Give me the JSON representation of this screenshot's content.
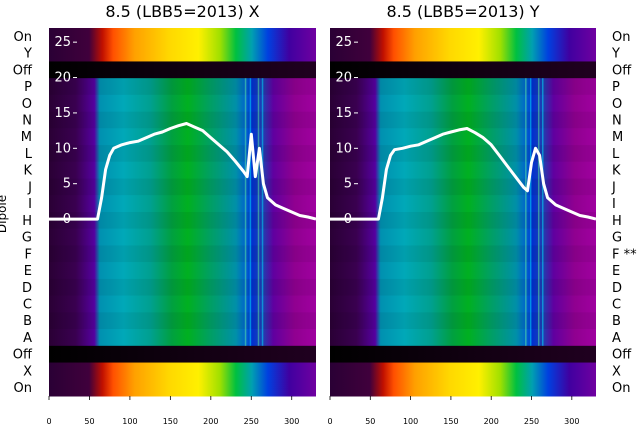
{
  "chart_data": [
    {
      "type": "heatmap",
      "title": "8.5 (LBB5=2013) X",
      "ylabel": "Dipole",
      "xlim": [
        0,
        330
      ],
      "xticks": [
        0,
        50,
        100,
        150,
        200,
        250,
        300
      ],
      "overlay_yticks": [
        0,
        5,
        10,
        15,
        20,
        25
      ],
      "overlay_ylim": [
        -25,
        27
      ],
      "row_labels": [
        "On",
        "Y",
        "Off",
        "P",
        "O",
        "N",
        "M",
        "L",
        "K",
        "J",
        "I",
        "H",
        "G",
        "F",
        "E",
        "D",
        "C",
        "B",
        "A",
        "Off",
        "X",
        "On"
      ],
      "overlay": {
        "type": "line",
        "x": [
          0,
          60,
          65,
          70,
          75,
          80,
          90,
          100,
          110,
          120,
          130,
          140,
          150,
          160,
          170,
          180,
          190,
          200,
          210,
          220,
          230,
          240,
          245,
          250,
          255,
          260,
          265,
          270,
          280,
          290,
          300,
          310,
          320,
          330
        ],
        "y": [
          0,
          0,
          3,
          7,
          9,
          10,
          10.5,
          10.8,
          11,
          11.5,
          12,
          12.3,
          12.8,
          13.2,
          13.5,
          13,
          12.5,
          11.5,
          10.5,
          9.5,
          8.2,
          6.8,
          6,
          12,
          6,
          10,
          5,
          3,
          2,
          1.5,
          1,
          0.5,
          0.3,
          0
        ]
      }
    },
    {
      "type": "heatmap",
      "title": "8.5 (LBB5=2013) Y",
      "xlim": [
        0,
        330
      ],
      "xticks": [
        0,
        50,
        100,
        150,
        200,
        250,
        300
      ],
      "overlay_yticks": [
        0,
        5,
        10,
        15,
        20,
        25
      ],
      "overlay_ylim": [
        -25,
        27
      ],
      "row_labels": [
        "On",
        "Y",
        "Off",
        "P",
        "O",
        "N",
        "M",
        "L",
        "K",
        "J",
        "I",
        "H",
        "G",
        "F **",
        "E",
        "D",
        "C",
        "B",
        "A",
        "Off",
        "X",
        "On"
      ],
      "overlay": {
        "type": "line",
        "x": [
          0,
          60,
          65,
          70,
          75,
          80,
          90,
          100,
          110,
          120,
          130,
          140,
          150,
          160,
          170,
          180,
          190,
          200,
          210,
          220,
          230,
          240,
          245,
          250,
          255,
          260,
          265,
          270,
          280,
          290,
          300,
          310,
          320,
          330
        ],
        "y": [
          0,
          0,
          3,
          7,
          9,
          9.8,
          10,
          10.3,
          10.5,
          11,
          11.5,
          12,
          12.3,
          12.6,
          12.8,
          12.2,
          11.5,
          10.5,
          9,
          7.5,
          6,
          4.5,
          4,
          8,
          10,
          9,
          5,
          3,
          2,
          1.5,
          1,
          0.5,
          0.3,
          0
        ]
      }
    }
  ]
}
